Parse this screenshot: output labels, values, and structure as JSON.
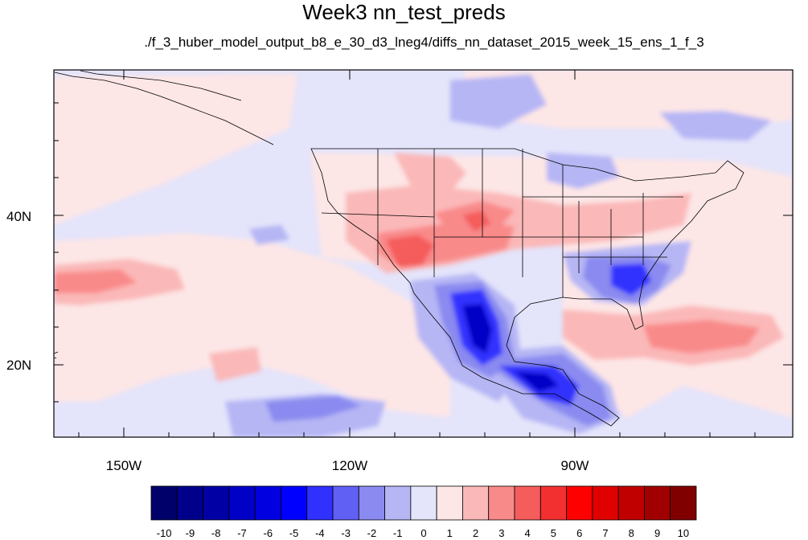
{
  "title": "Week3 nn_test_preds",
  "subtitle": "./f_3_huber_model_output_b8_e_30_d3_lneg4/diffs_nn_dataset_2015_week_15_ens_1_f_3",
  "lon_labels": [
    "150W",
    "120W",
    "90W"
  ],
  "lat_labels": [
    "40N",
    "20N"
  ],
  "colorbar": {
    "labels": [
      "-10",
      "-9",
      "-8",
      "-7",
      "-6",
      "-5",
      "-4",
      "-3",
      "-2",
      "-1",
      "0",
      "1",
      "2",
      "3",
      "4",
      "5",
      "6",
      "7",
      "8",
      "9",
      "10"
    ],
    "colors": [
      "#00006b",
      "#00008a",
      "#0000a5",
      "#0000c6",
      "#0000e0",
      "#0000ff",
      "#3030ff",
      "#6060f5",
      "#8a8af0",
      "#b6b6f5",
      "#e4e4fb",
      "#fde6e6",
      "#fbb8b8",
      "#f98a8a",
      "#f55c5c",
      "#f23030",
      "#ff0000",
      "#e00000",
      "#c00000",
      "#a00000",
      "#800000"
    ]
  },
  "colors": {
    "background_neutral": "#e4e4fb",
    "border": "#000000"
  }
}
